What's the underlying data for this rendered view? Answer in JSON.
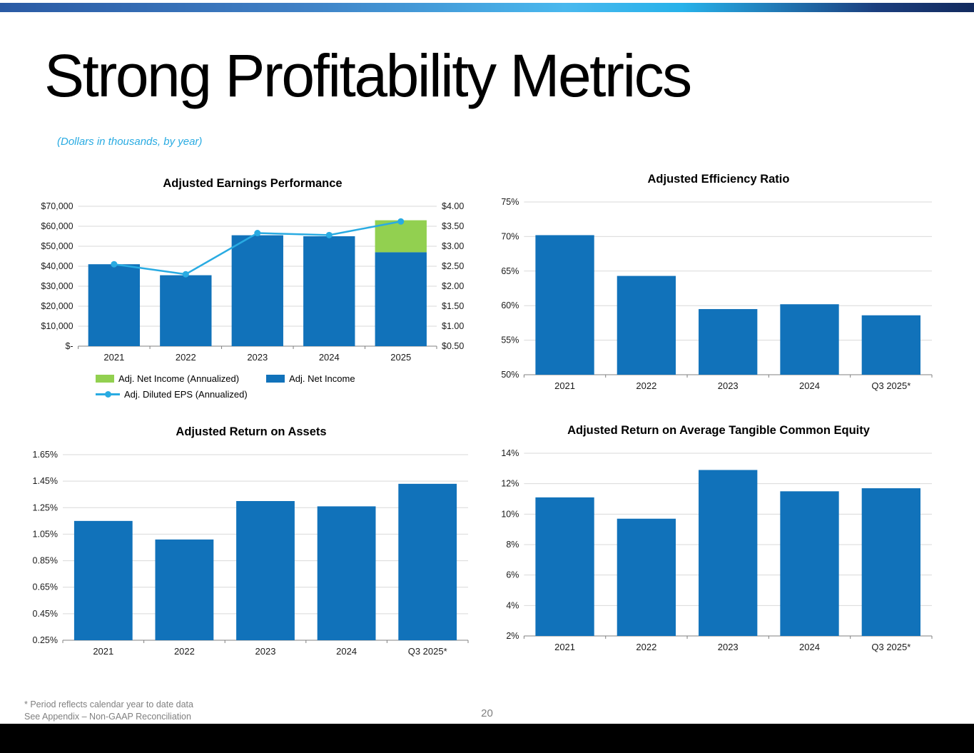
{
  "slide": {
    "title": "Strong Profitability Metrics",
    "subtitle": "(Dollars in thousands, by year)"
  },
  "footer": {
    "footnote_line1": "* Period reflects calendar year to date data",
    "footnote_line2": "See Appendix – Non-GAAP Reconciliation",
    "page_number": "20"
  },
  "colors": {
    "bar_blue": "#1172BA",
    "annualized_green": "#92D050",
    "eps_line_blue": "#29ABE2",
    "accent_cyan": "#29ABE2",
    "gridline_gray": "#D9D9D9",
    "footnote_gray": "#808080"
  },
  "chart_data": [
    {
      "type": "combo",
      "title": "Adjusted Earnings Performance",
      "categories": [
        "2021",
        "2022",
        "2023",
        "2024",
        "2025"
      ],
      "series": [
        {
          "name": "Adj. Net Income",
          "type": "bar",
          "axis": "left",
          "color": "#1172BA",
          "values": [
            41000,
            35500,
            55500,
            55000,
            47000
          ]
        },
        {
          "name": "Adj. Net Income (Annualized)",
          "type": "bar",
          "stacked_on": "Adj. Net Income",
          "axis": "left",
          "color": "#92D050",
          "values": [
            0,
            0,
            0,
            0,
            16000
          ]
        },
        {
          "name": "Adj. Diluted EPS (Annualized)",
          "type": "line",
          "axis": "right",
          "color": "#29ABE2",
          "values": [
            2.55,
            2.3,
            3.33,
            3.28,
            3.62
          ]
        }
      ],
      "left_axis": {
        "min": 0,
        "max": 70000,
        "step": 10000,
        "labels": [
          "$-",
          "$10,000",
          "$20,000",
          "$30,000",
          "$40,000",
          "$50,000",
          "$60,000",
          "$70,000"
        ]
      },
      "right_axis": {
        "min": 0.5,
        "max": 4.0,
        "step": 0.5,
        "labels": [
          "$0.50",
          "$1.00",
          "$1.50",
          "$2.00",
          "$2.50",
          "$3.00",
          "$3.50",
          "$4.00"
        ]
      },
      "grid": true,
      "legend_position": "bottom"
    },
    {
      "type": "bar",
      "title": "Adjusted Efficiency Ratio",
      "categories": [
        "2021",
        "2022",
        "2023",
        "2024",
        "Q3 2025*"
      ],
      "values": [
        70.2,
        64.3,
        59.5,
        60.2,
        58.6
      ],
      "bar_color": "#1172BA",
      "left_axis": {
        "min": 50,
        "max": 75,
        "step": 5,
        "labels": [
          "50%",
          "55%",
          "60%",
          "65%",
          "70%",
          "75%"
        ]
      },
      "grid": true
    },
    {
      "type": "bar",
      "title": "Adjusted Return on Assets",
      "categories": [
        "2021",
        "2022",
        "2023",
        "2024",
        "Q3 2025*"
      ],
      "values": [
        1.15,
        1.01,
        1.3,
        1.26,
        1.43
      ],
      "bar_color": "#1172BA",
      "left_axis": {
        "min": 0.25,
        "max": 1.65,
        "step": 0.2,
        "labels": [
          "0.25%",
          "0.45%",
          "0.65%",
          "0.85%",
          "1.05%",
          "1.25%",
          "1.45%",
          "1.65%"
        ]
      },
      "grid": true
    },
    {
      "type": "bar",
      "title": "Adjusted Return on Average Tangible Common Equity",
      "categories": [
        "2021",
        "2022",
        "2023",
        "2024",
        "Q3 2025*"
      ],
      "values": [
        11.1,
        9.7,
        12.9,
        11.5,
        11.7
      ],
      "bar_color": "#1172BA",
      "left_axis": {
        "min": 2,
        "max": 14,
        "step": 2,
        "labels": [
          "2%",
          "4%",
          "6%",
          "8%",
          "10%",
          "12%",
          "14%"
        ]
      },
      "grid": true
    }
  ]
}
